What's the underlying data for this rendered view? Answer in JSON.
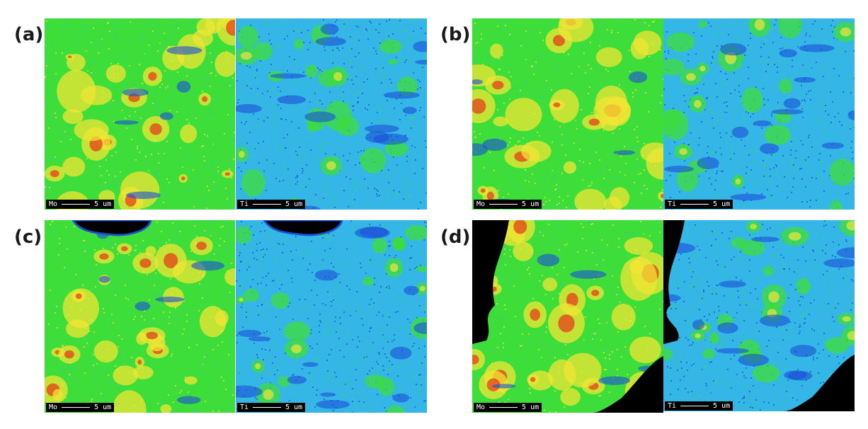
{
  "panels": [
    {
      "label": "(a)",
      "maps": [
        {
          "element": "Mo",
          "scale_text": "5 um"
        },
        {
          "element": "Ti",
          "scale_text": "5 um"
        }
      ]
    },
    {
      "label": "(b)",
      "maps": [
        {
          "element": "Mo",
          "scale_text": "5 um"
        },
        {
          "element": "Ti",
          "scale_text": "5 um"
        }
      ]
    },
    {
      "label": "(c)",
      "maps": [
        {
          "element": "Mo",
          "scale_text": "5 um"
        },
        {
          "element": "Ti",
          "scale_text": "5 um"
        }
      ]
    },
    {
      "label": "(d)",
      "maps": [
        {
          "element": "Mo",
          "scale_text": "5 um"
        },
        {
          "element": "Ti",
          "scale_text": "5 um"
        }
      ]
    }
  ],
  "colors": {
    "low": "#1a4fd8",
    "mid_low": "#34b6e6",
    "mid": "#3ede3a",
    "mid_high": "#f2e634",
    "high": "#e8341a",
    "void": "#000000"
  }
}
